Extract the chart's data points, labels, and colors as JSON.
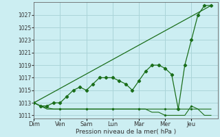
{
  "xlabel": "Pression niveau de la mer( hPa )",
  "background_color": "#cceef2",
  "grid_color": "#aad4d8",
  "line_color": "#1a6e1a",
  "ylim": [
    1010.5,
    1029
  ],
  "yticks": [
    1011,
    1013,
    1015,
    1017,
    1019,
    1021,
    1023,
    1025,
    1027
  ],
  "day_labels": [
    "Dim",
    "Ven",
    "Sam",
    "Lun",
    "Mar",
    "Mer",
    "Jeu"
  ],
  "day_positions": [
    0,
    24,
    48,
    72,
    96,
    120,
    144
  ],
  "xlim": [
    0,
    168
  ],
  "series_wavy": {
    "x": [
      0,
      6,
      12,
      18,
      24,
      30,
      36,
      42,
      48,
      54,
      60,
      66,
      72,
      78,
      84,
      90,
      96,
      102,
      108,
      114,
      120,
      126,
      132,
      138,
      144,
      150,
      156,
      162
    ],
    "y": [
      1013,
      1012.5,
      1012.5,
      1013,
      1013,
      1014,
      1015,
      1015.5,
      1015,
      1016,
      1017,
      1017,
      1017,
      1016.5,
      1016,
      1015,
      1016.5,
      1018,
      1019,
      1019,
      1018.5,
      1017.5,
      1012,
      1019,
      1023,
      1027,
      1028.5,
      1028.5
    ]
  },
  "series_flat": {
    "x": [
      0,
      6,
      12,
      18,
      24,
      30,
      36,
      42,
      48,
      54,
      60,
      66,
      72,
      78,
      84,
      90,
      96,
      102,
      108,
      114,
      120,
      126,
      132,
      138,
      144,
      150,
      156,
      162
    ],
    "y": [
      1013,
      1012.5,
      1012.2,
      1012,
      1012,
      1012,
      1012,
      1012,
      1012,
      1012,
      1012,
      1012,
      1012,
      1012,
      1012,
      1012,
      1012,
      1012,
      1012,
      1012,
      1012,
      1012,
      1012,
      1012,
      1012,
      1012,
      1012,
      1012
    ]
  },
  "series_low": {
    "x": [
      0,
      6,
      12,
      18,
      24,
      30,
      36,
      42,
      48,
      54,
      60,
      66,
      72,
      78,
      84,
      90,
      96,
      102,
      108,
      114,
      120,
      126,
      132,
      138,
      144,
      150,
      156,
      162
    ],
    "y": [
      1013,
      1012.5,
      1012,
      1012,
      1012,
      1012,
      1012,
      1012,
      1012,
      1012,
      1012,
      1012,
      1012,
      1012,
      1012,
      1012,
      1012,
      1012,
      1011.5,
      1011.5,
      1011,
      1011,
      1011,
      1011,
      1012.5,
      1012,
      1011,
      1011
    ]
  },
  "series_diag": {
    "x": [
      0,
      162
    ],
    "y": [
      1013,
      1028.5
    ]
  }
}
